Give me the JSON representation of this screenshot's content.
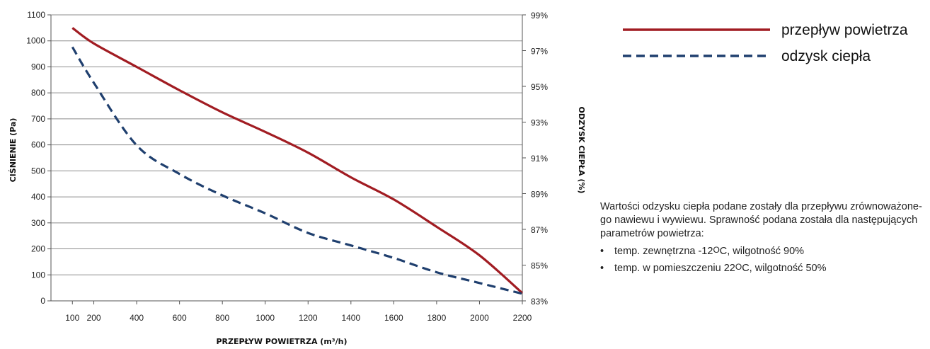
{
  "chart_data": {
    "type": "line",
    "xlabel": "PRZEPŁYW POWIETRZA (m³/h)",
    "ylabel": "CIŚNIENIE (Pa)",
    "y2label": "ODZYSK CIEPŁA (%)",
    "xlim": [
      0,
      2200
    ],
    "ylim": [
      0,
      1100
    ],
    "y2lim": [
      83,
      99
    ],
    "x_ticks": [
      "100",
      "200",
      "400",
      "600",
      "800",
      "1000",
      "1200",
      "1400",
      "1600",
      "1800",
      "2000",
      "2200"
    ],
    "y_ticks": [
      "0",
      "100",
      "200",
      "300",
      "400",
      "500",
      "600",
      "700",
      "800",
      "900",
      "1000",
      "1100"
    ],
    "y2_ticks": [
      "83%",
      "85%",
      "87%",
      "89%",
      "91%",
      "93%",
      "95%",
      "97%",
      "99%"
    ],
    "grid": true,
    "legend_position": "top-right",
    "series": [
      {
        "name": "przepływ powietrza",
        "axis": "left",
        "color": "#a11c22",
        "style": "solid",
        "x": [
          100,
          200,
          400,
          600,
          800,
          1000,
          1200,
          1400,
          1600,
          1800,
          2000,
          2200
        ],
        "y": [
          1050,
          990,
          900,
          810,
          725,
          650,
          570,
          475,
          390,
          285,
          175,
          30
        ]
      },
      {
        "name": "odzysk ciepła",
        "axis": "right",
        "color": "#1f3f6e",
        "style": "dashed",
        "x": [
          100,
          200,
          400,
          600,
          800,
          1000,
          1200,
          1400,
          1600,
          1800,
          2000,
          2200
        ],
        "y": [
          97.2,
          95.2,
          91.7,
          90.1,
          88.9,
          87.9,
          86.8,
          86.1,
          85.4,
          84.6,
          84.0,
          83.4
        ]
      }
    ]
  },
  "note": {
    "line1": "Wartości odzysku ciepła podane zostały dla przepływu zrównoważone-",
    "line2": "go nawiewu i wywiewu. Sprawność podana została dla następujących",
    "line3": "parametrów powietrza:",
    "bullet_char": "•",
    "bullets": [
      {
        "pre": "temp. zewnętrzna -12",
        "sup": "O",
        "post": "C, wilgotność 90%"
      },
      {
        "pre": "temp. w pomieszczeniu 22",
        "sup": "O",
        "post": "C, wilgotność 50%"
      }
    ]
  }
}
